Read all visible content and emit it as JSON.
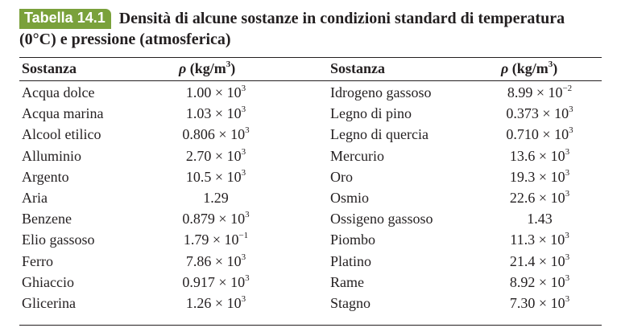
{
  "table": {
    "label": "Tabella 14.1",
    "title": "Densità di alcune sostanze in condizioni standard di temperatura (0°C) e pressione (atmosferica)",
    "headers": {
      "left_substance": "Sostanza",
      "left_density_symbol": "ρ",
      "left_density_unit": " (kg/m",
      "left_density_exp": "3",
      "left_density_close": ")",
      "right_substance": "Sostanza",
      "right_density_symbol": "ρ",
      "right_density_unit": " (kg/m",
      "right_density_exp": "3",
      "right_density_close": ")"
    },
    "rows": [
      {
        "left_name": "Acqua dolce",
        "left_mant": "1.00 × 10",
        "left_exp": "3",
        "right_name": "Idrogeno gassoso",
        "right_mant": "8.99 × 10",
        "right_exp": "−2"
      },
      {
        "left_name": "Acqua marina",
        "left_mant": "1.03 × 10",
        "left_exp": "3",
        "right_name": "Legno di pino",
        "right_mant": "0.373 × 10",
        "right_exp": "3"
      },
      {
        "left_name": "Alcool etilico",
        "left_mant": "0.806 × 10",
        "left_exp": "3",
        "right_name": "Legno di quercia",
        "right_mant": "0.710 × 10",
        "right_exp": "3"
      },
      {
        "left_name": "Alluminio",
        "left_mant": "2.70 × 10",
        "left_exp": "3",
        "right_name": "Mercurio",
        "right_mant": "13.6 × 10",
        "right_exp": "3"
      },
      {
        "left_name": "Argento",
        "left_mant": "10.5 × 10",
        "left_exp": "3",
        "right_name": "Oro",
        "right_mant": "19.3 × 10",
        "right_exp": "3"
      },
      {
        "left_name": "Aria",
        "left_mant": "1.29",
        "left_exp": "",
        "right_name": "Osmio",
        "right_mant": "22.6 × 10",
        "right_exp": "3"
      },
      {
        "left_name": "Benzene",
        "left_mant": "0.879 × 10",
        "left_exp": "3",
        "right_name": "Ossigeno gassoso",
        "right_mant": "1.43",
        "right_exp": ""
      },
      {
        "left_name": "Elio gassoso",
        "left_mant": "1.79 × 10",
        "left_exp": "−1",
        "right_name": "Piombo",
        "right_mant": "11.3 × 10",
        "right_exp": "3"
      },
      {
        "left_name": "Ferro",
        "left_mant": "7.86 × 10",
        "left_exp": "3",
        "right_name": "Platino",
        "right_mant": "21.4 × 10",
        "right_exp": "3"
      },
      {
        "left_name": "Ghiaccio",
        "left_mant": "0.917 × 10",
        "left_exp": "3",
        "right_name": "Rame",
        "right_mant": "8.92 × 10",
        "right_exp": "3"
      },
      {
        "left_name": "Glicerina",
        "left_mant": "1.26 × 10",
        "left_exp": "3",
        "right_name": "Stagno",
        "right_mant": "7.30 × 10",
        "right_exp": "3"
      }
    ]
  },
  "colors": {
    "label_background": "#7aa13b",
    "label_text": "#ffffff",
    "text": "#231f20"
  }
}
